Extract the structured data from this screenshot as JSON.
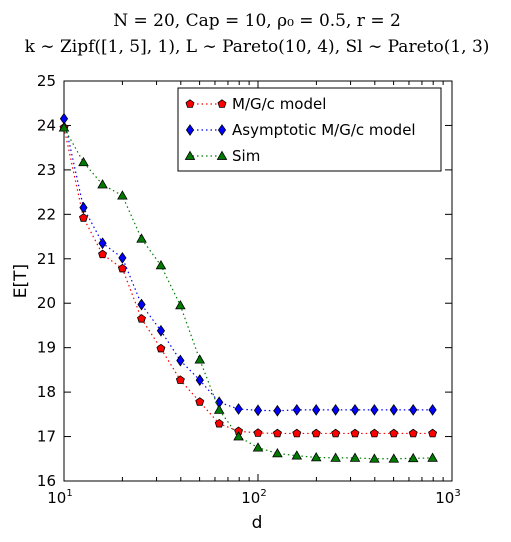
{
  "chart_data": {
    "type": "line",
    "title_lines": [
      "N = 20, Cap = 10, ρ₀ = 0.5, r = 2",
      "k ∼ Zipf([1, 5], 1), L ∼ Pareto(10, 4), Sl ∼ Pareto(1, 3)"
    ],
    "xlabel": "d",
    "ylabel": "E[T]",
    "xscale": "log",
    "xlim": [
      10,
      1000
    ],
    "ylim": [
      16,
      25
    ],
    "x_ticks": [
      {
        "value": 10,
        "base": "10",
        "exp": "1"
      },
      {
        "value": 100,
        "base": "10",
        "exp": "2"
      },
      {
        "value": 1000,
        "base": "10",
        "exp": "3"
      }
    ],
    "y_ticks": [
      16,
      17,
      18,
      19,
      20,
      21,
      22,
      23,
      24,
      25
    ],
    "legend_position": "top-right",
    "grid": false,
    "series": [
      {
        "name": "M/G/c model",
        "color": "#ff0000",
        "marker": "pentagon",
        "x": [
          10,
          12.6,
          15.8,
          20,
          25.1,
          31.6,
          39.8,
          50.1,
          63.1,
          79.4,
          100,
          125.9,
          158.5,
          199.5,
          251.2,
          316.2,
          398.1,
          501.2,
          631,
          794.3
        ],
        "y": [
          23.95,
          21.92,
          21.1,
          20.78,
          19.65,
          18.98,
          18.27,
          17.78,
          17.29,
          17.12,
          17.08,
          17.07,
          17.07,
          17.07,
          17.07,
          17.07,
          17.07,
          17.07,
          17.07,
          17.07
        ]
      },
      {
        "name": "Asymptotic M/G/c model",
        "color": "#0000ff",
        "marker": "diamond",
        "x": [
          10,
          12.6,
          15.8,
          20,
          25.1,
          31.6,
          39.8,
          50.1,
          63.1,
          79.4,
          100,
          125.9,
          158.5,
          199.5,
          251.2,
          316.2,
          398.1,
          501.2,
          631,
          794.3
        ],
        "y": [
          24.15,
          22.15,
          21.35,
          21.02,
          19.97,
          19.38,
          18.71,
          18.27,
          17.77,
          17.62,
          17.59,
          17.58,
          17.6,
          17.6,
          17.6,
          17.6,
          17.6,
          17.6,
          17.6,
          17.6
        ]
      },
      {
        "name": "Sim",
        "color": "#007a00",
        "marker": "triangle",
        "x": [
          10,
          12.6,
          15.8,
          20,
          25.1,
          31.6,
          39.8,
          50.1,
          63.1,
          79.4,
          100,
          125.9,
          158.5,
          199.5,
          251.2,
          316.2,
          398.1,
          501.2,
          631,
          794.3
        ],
        "y": [
          23.95,
          23.17,
          22.67,
          22.42,
          21.45,
          20.85,
          19.95,
          18.73,
          17.6,
          17.0,
          16.75,
          16.62,
          16.57,
          16.53,
          16.52,
          16.52,
          16.5,
          16.5,
          16.51,
          16.52
        ]
      }
    ]
  }
}
